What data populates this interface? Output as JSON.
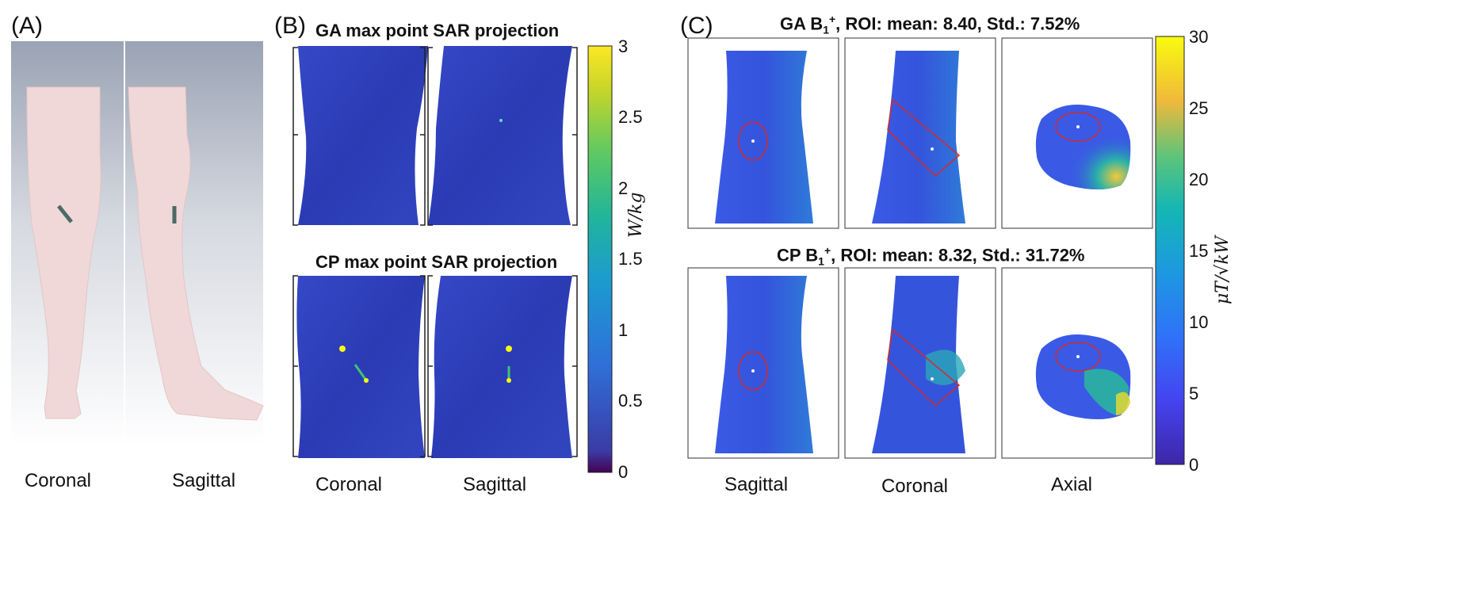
{
  "panel_a": {
    "label": "(A)",
    "views": [
      "Coronal",
      "Sagittal"
    ]
  },
  "panel_b": {
    "label": "(B)",
    "title_top": "GA max point SAR projection",
    "title_bottom": "CP max point SAR projection",
    "views": [
      "Coronal",
      "Sagittal"
    ],
    "colorbar": {
      "ticks": [
        "3",
        "2.5",
        "2",
        "1.5",
        "1",
        "0.5",
        "0"
      ],
      "unit": "W/kg"
    }
  },
  "panel_c": {
    "label": "(C)",
    "title_top": {
      "prefix": "GA B",
      "sub": "1",
      "sup": "+",
      "rest": ", ROI:  mean: 8.40, Std.: 7.52%"
    },
    "title_bottom": {
      "prefix": "CP B",
      "sub": "1",
      "sup": "+",
      "rest": ", ROI:  mean: 8.32, Std.: 31.72%"
    },
    "views": [
      "Sagittal",
      "Coronal",
      "Axial"
    ],
    "colorbar": {
      "ticks": [
        "30",
        "25",
        "20",
        "15",
        "10",
        "5",
        "0"
      ],
      "unit": "μT/√kW"
    }
  },
  "colors": {
    "viridis_top": "#fde725",
    "viridis_mid": "#21918c",
    "viridis_low": "#3b52e0",
    "parula_top": "#f9fb0e",
    "parula_mid": "#15b7b3",
    "parula_low": "#3e26a8",
    "roi": "#d22b2b"
  }
}
